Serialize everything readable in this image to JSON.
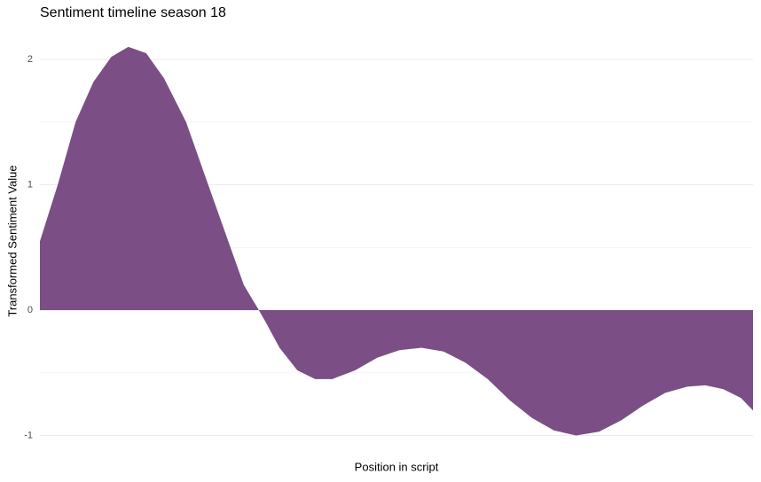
{
  "chart_data": {
    "type": "area",
    "title": "Sentiment timeline season 18",
    "x_label": "Position in script",
    "y_label": "Transformed Sentiment Value",
    "x": [
      0,
      2.5,
      5,
      7.5,
      10,
      12.4,
      14.9,
      17.4,
      20.5,
      23.6,
      26.1,
      28.6,
      30.5,
      31.7,
      33.6,
      36.1,
      38.6,
      41.0,
      44.2,
      47.3,
      50.4,
      53.5,
      56.6,
      59.7,
      62.8,
      65.9,
      69.0,
      72.1,
      75.2,
      78.4,
      81.5,
      84.6,
      87.7,
      90.8,
      93.3,
      95.8,
      98.3,
      100
    ],
    "values": [
      0.55,
      1.0,
      1.5,
      1.82,
      2.02,
      2.1,
      2.05,
      1.85,
      1.5,
      1.0,
      0.6,
      0.2,
      0.02,
      -0.1,
      -0.3,
      -0.48,
      -0.55,
      -0.55,
      -0.48,
      -0.38,
      -0.32,
      -0.3,
      -0.33,
      -0.42,
      -0.55,
      -0.72,
      -0.86,
      -0.96,
      -1.0,
      -0.97,
      -0.88,
      -0.76,
      -0.66,
      -0.61,
      -0.6,
      -0.63,
      -0.7,
      -0.8
    ],
    "color": "#7b4f86",
    "xlim": [
      0,
      100
    ],
    "ylim": [
      -1.05,
      2.15
    ],
    "yticks": [
      -1,
      0,
      1,
      2
    ],
    "grid": true
  }
}
